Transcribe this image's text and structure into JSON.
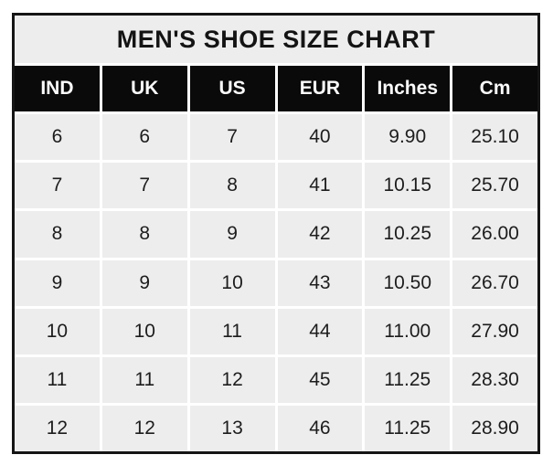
{
  "chart_data": {
    "type": "table",
    "title": "MEN'S SHOE SIZE CHART",
    "columns": [
      "IND",
      "UK",
      "US",
      "EUR",
      "Inches",
      "Cm"
    ],
    "rows": [
      [
        "6",
        "6",
        "7",
        "40",
        "9.90",
        "25.10"
      ],
      [
        "7",
        "7",
        "8",
        "41",
        "10.15",
        "25.70"
      ],
      [
        "8",
        "8",
        "9",
        "42",
        "10.25",
        "26.00"
      ],
      [
        "9",
        "9",
        "10",
        "43",
        "10.50",
        "26.70"
      ],
      [
        "10",
        "10",
        "11",
        "44",
        "11.00",
        "27.90"
      ],
      [
        "11",
        "11",
        "12",
        "45",
        "11.25",
        "28.30"
      ],
      [
        "12",
        "12",
        "13",
        "46",
        "11.25",
        "28.90"
      ]
    ],
    "layout": {
      "legend": "none",
      "grid": "on",
      "header_background": "#0a0a0a",
      "header_text_color": "#fbfbfb",
      "cell_background": "#ededed",
      "gridline_color": "#ffffff",
      "frame_border_color": "#151515",
      "page_background": "#ffffff"
    }
  }
}
